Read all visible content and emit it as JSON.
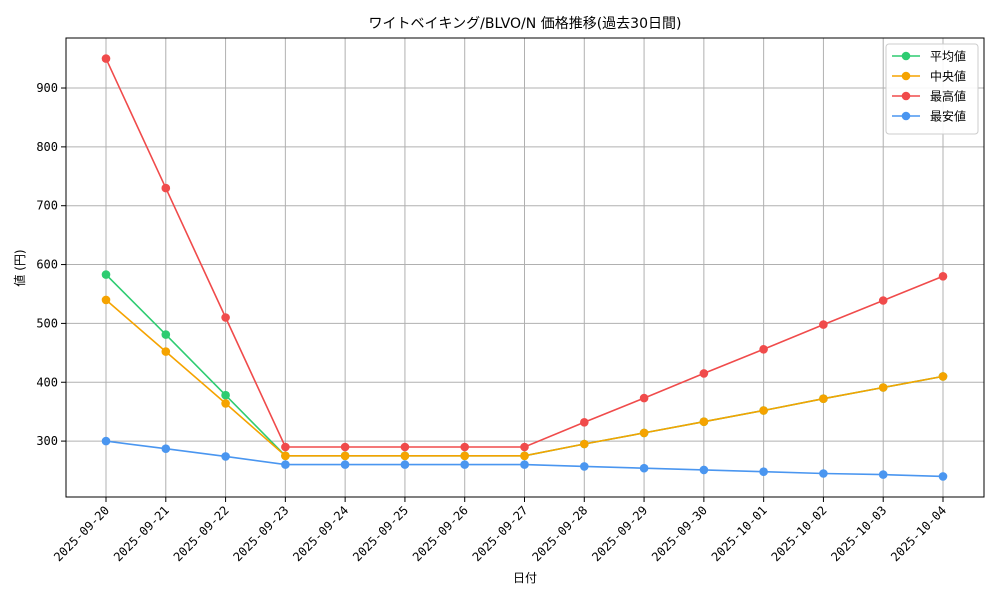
{
  "chart_data": {
    "type": "line",
    "title": "ワイトベイキング/BLVO/N 価格推移(過去30日間)",
    "xlabel": "日付",
    "ylabel": "値 (円)",
    "categories": [
      "2025-09-20",
      "2025-09-21",
      "2025-09-22",
      "2025-09-23",
      "2025-09-24",
      "2025-09-25",
      "2025-09-26",
      "2025-09-27",
      "2025-09-28",
      "2025-09-29",
      "2025-09-30",
      "2025-10-01",
      "2025-10-02",
      "2025-10-03",
      "2025-10-04"
    ],
    "ylim": [
      205,
      985
    ],
    "yticks": [
      300,
      400,
      500,
      600,
      700,
      800,
      900
    ],
    "grid": true,
    "legend_position": "top-right",
    "series": [
      {
        "name": "平均値",
        "color": "#2ecc71",
        "values": [
          583,
          481,
          378,
          275,
          275,
          275,
          275,
          275,
          295,
          314,
          333,
          352,
          372,
          391,
          410
        ]
      },
      {
        "name": "中央値",
        "color": "#f5a300",
        "values": [
          540,
          452,
          364,
          275,
          275,
          275,
          275,
          275,
          295,
          314,
          333,
          352,
          372,
          391,
          410
        ]
      },
      {
        "name": "最高値",
        "color": "#f04b4b",
        "values": [
          950,
          730,
          510,
          290,
          290,
          290,
          290,
          290,
          332,
          373,
          415,
          456,
          498,
          539,
          580
        ]
      },
      {
        "name": "最安値",
        "color": "#4a96f0",
        "values": [
          300,
          287,
          274,
          260,
          260,
          260,
          260,
          260,
          257,
          254,
          251,
          248,
          245,
          243,
          240
        ]
      }
    ]
  }
}
